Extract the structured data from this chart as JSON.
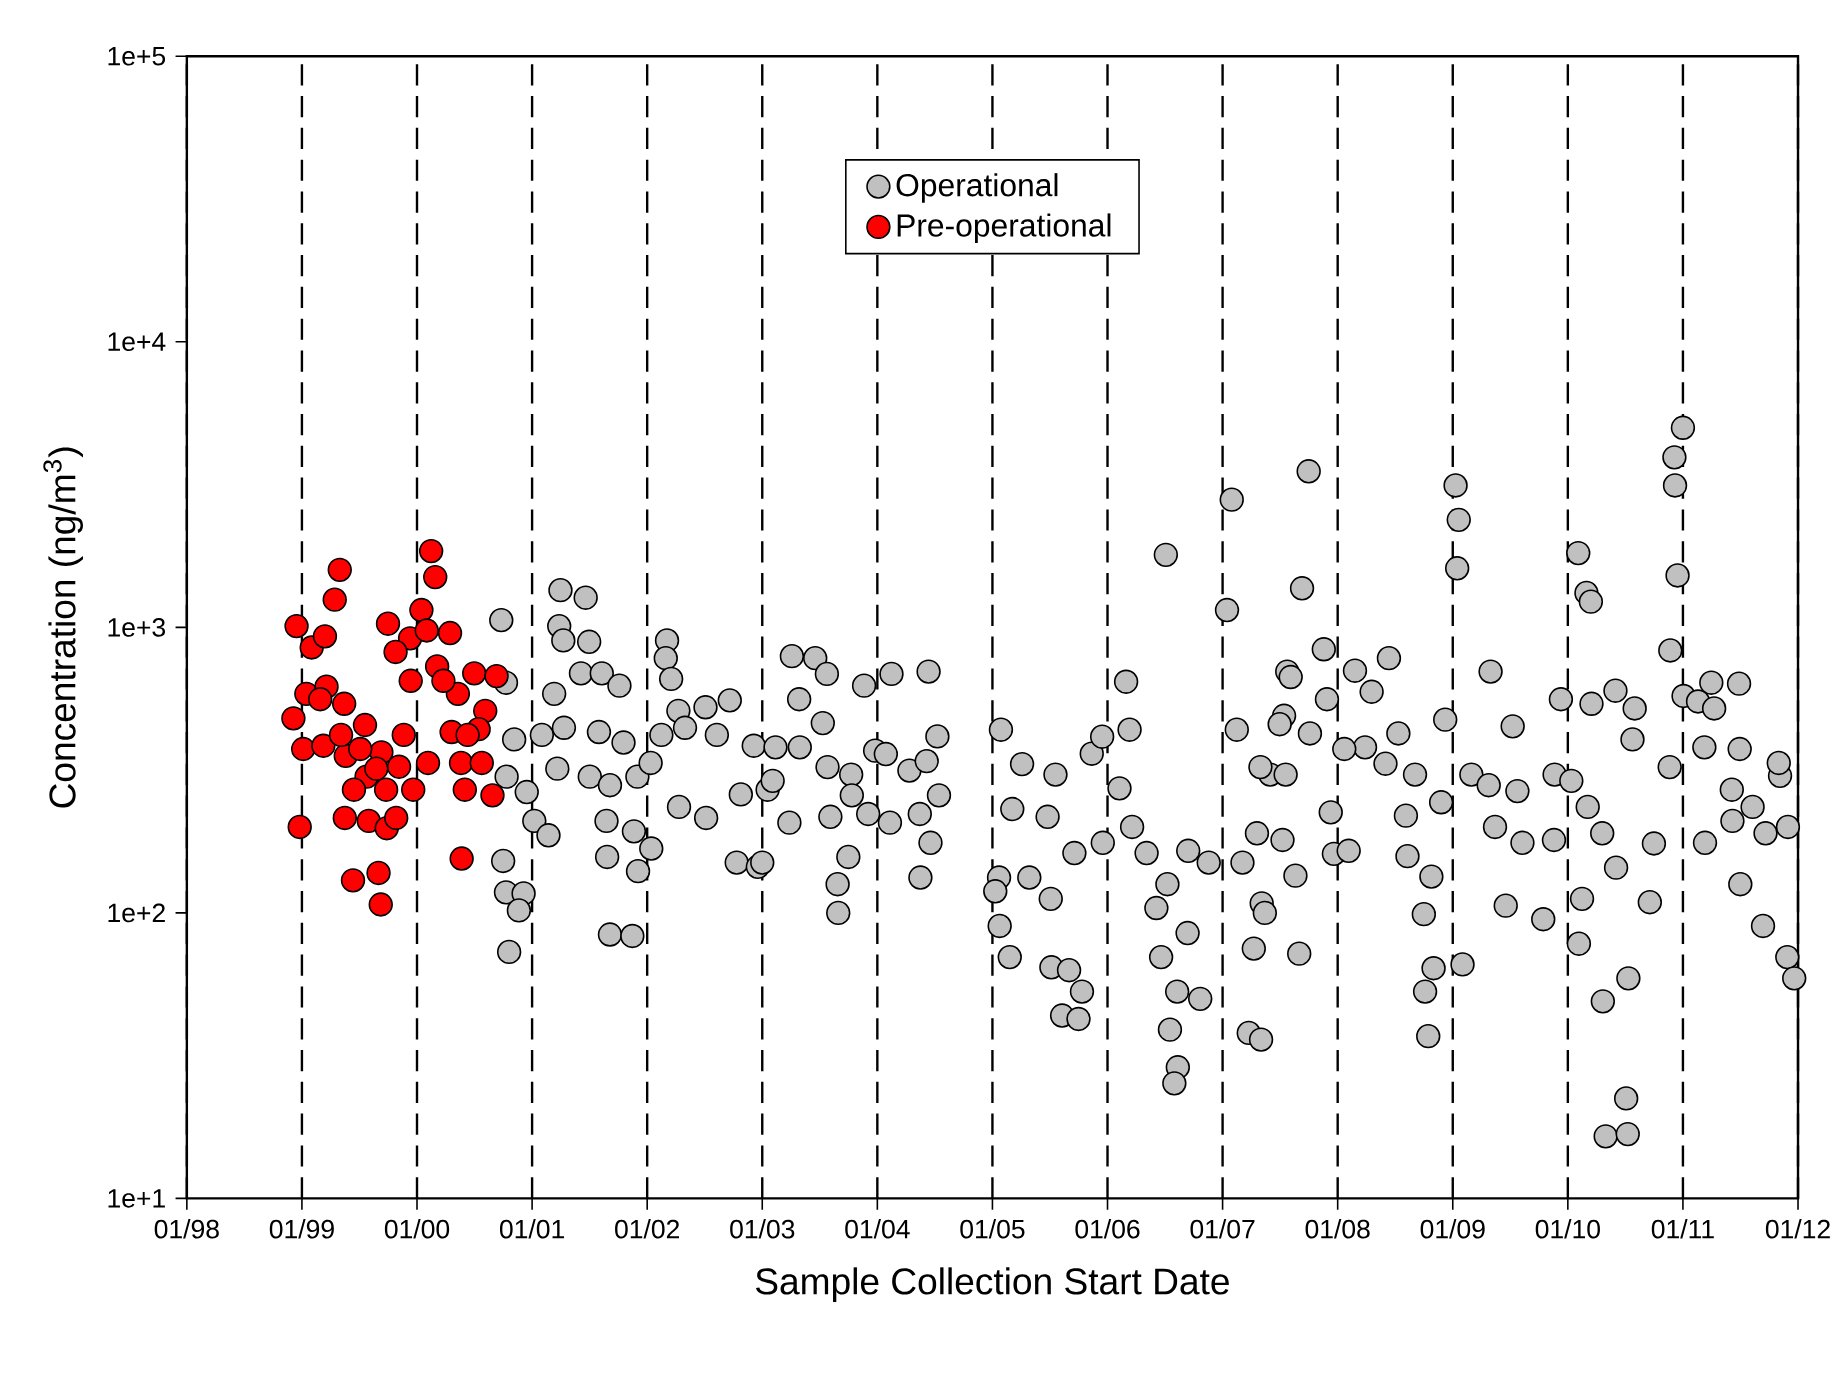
{
  "chart_data": {
    "type": "scatter",
    "xlabel": "Sample Collection Start Date",
    "ylabel": "Concentration (ng/m$^{3}$)",
    "log": "y",
    "grid": "x",
    "legend": "top",
    "marker": "circle",
    "xlim": [
      "1998-01-01",
      "2012-01-01"
    ],
    "xticks": [
      {
        "value": "1998-01-01",
        "label": "01/98"
      },
      {
        "value": "1999-01-01",
        "label": "01/99"
      },
      {
        "value": "2000-01-01",
        "label": "01/00"
      },
      {
        "value": "2001-01-01",
        "label": "01/01"
      },
      {
        "value": "2002-01-01",
        "label": "01/02"
      },
      {
        "value": "2003-01-01",
        "label": "01/03"
      },
      {
        "value": "2004-01-01",
        "label": "01/04"
      },
      {
        "value": "2005-01-01",
        "label": "01/05"
      },
      {
        "value": "2006-01-01",
        "label": "01/06"
      },
      {
        "value": "2007-01-01",
        "label": "01/07"
      },
      {
        "value": "2008-01-01",
        "label": "01/08"
      },
      {
        "value": "2009-01-01",
        "label": "01/09"
      },
      {
        "value": "2010-01-01",
        "label": "01/10"
      },
      {
        "value": "2011-01-01",
        "label": "01/11"
      },
      {
        "value": "2012-01-01",
        "label": "01/12"
      }
    ],
    "ylim": [
      10,
      100000
    ],
    "yticks": [
      {
        "value": 10,
        "label": "1e+1"
      },
      {
        "value": 100,
        "label": "1e+2"
      },
      {
        "value": 1000,
        "label": "1e+3"
      },
      {
        "value": 10000,
        "label": "1e+4"
      },
      {
        "value": 100000,
        "label": "1e+5"
      }
    ],
    "series": [
      {
        "name": "Operational",
        "color": "#c0c0c0",
        "x": [
          "2000-09-25",
          "2001-04-01",
          "2001-06-20",
          "2001-03-28",
          "2001-04-10",
          "2001-07-01",
          "2002-03-05",
          "2002-03-01",
          "2000-10-10",
          "2001-03-12",
          "2001-06-05",
          "2001-08-10",
          "2001-10-05",
          "2002-03-18",
          "2002-04-10",
          "2002-07-05",
          "2002-09-20",
          "2000-11-05",
          "2001-02-01",
          "2001-04-12",
          "2001-08-01",
          "2001-10-18",
          "2002-02-15",
          "2002-05-01",
          "2002-08-10",
          "2002-12-05",
          "2000-10-12",
          "2000-12-15",
          "2001-03-22",
          "2001-07-03",
          "2001-09-05",
          "2001-12-01",
          "2002-01-12",
          "2002-04-12",
          "2002-07-07",
          "2002-10-25",
          "2003-01-18",
          "2001-01-08",
          "2001-02-22",
          "2001-08-25",
          "2001-11-20",
          "2002-01-14",
          "2001-08-27",
          "2001-12-03",
          "2002-10-12",
          "2002-12-18",
          "2000-10-01",
          "2000-10-10",
          "2000-12-05",
          "2000-11-20",
          "2000-10-20",
          "2001-09-05",
          "2001-11-15",
          "2003-04-05",
          "2003-06-18",
          "2003-07-25",
          "2003-11-20",
          "2004-02-15",
          "2004-06-12",
          "2003-04-28",
          "2003-07-12",
          "2003-02-12",
          "2003-04-30",
          "2003-07-27",
          "2003-10-10",
          "2003-12-25",
          "2004-01-28",
          "2004-04-12",
          "2004-06-06",
          "2004-07-10",
          "2004-07-15",
          "2003-02-03",
          "2003-03-28",
          "2003-08-05",
          "2003-10-12",
          "2003-12-03",
          "2004-02-10",
          "2004-05-15",
          "2004-06-18",
          "2003-10-01",
          "2003-08-28",
          "2003-08-30",
          "2004-05-17",
          "2003-01-01",
          "2005-01-28",
          "2005-04-05",
          "2005-07-20",
          "2005-03-05",
          "2005-06-25",
          "2005-01-22",
          "2005-01-10",
          "2005-04-28",
          "2005-09-18",
          "2005-07-05",
          "2005-01-24",
          "2005-02-25",
          "2005-07-07",
          "2005-09-01",
          "2005-10-12",
          "2005-08-10",
          "2005-10-01",
          "2005-11-12",
          "2005-12-15",
          "2006-03-01",
          "2006-03-12",
          "2006-02-08",
          "2006-03-20",
          "2005-12-17",
          "2006-05-05",
          "2006-07-10",
          "2006-06-05",
          "2006-09-12",
          "2006-06-20",
          "2006-08-10",
          "2006-10-22",
          "2006-07-18",
          "2006-08-12",
          "2006-08-01",
          "2007-03-25",
          "2007-04-10",
          "2006-07-05",
          "2007-01-30",
          "2007-01-15",
          "2007-02-15",
          "2006-09-14",
          "2006-11-18",
          "2007-03-05",
          "2007-05-05",
          "2007-04-20",
          "2007-06-01",
          "2007-07-15",
          "2007-07-25",
          "2007-10-01",
          "2007-09-10",
          "2007-11-18",
          "2007-08-05",
          "2007-07-01",
          "2007-10-05",
          "2007-11-28",
          "2008-02-25",
          "2008-06-12",
          "2008-04-18",
          "2008-07-12",
          "2008-03-28",
          "2008-01-22",
          "2008-06-01",
          "2008-09-03",
          "2008-08-05",
          "2007-12-10",
          "2007-07-20",
          "2007-05-01",
          "2007-07-10",
          "2007-08-20",
          "2007-05-15",
          "2007-09-01",
          "2007-05-03",
          "2007-12-20",
          "2008-02-05",
          "2008-08-10",
          "2008-10-25",
          "2008-10-01",
          "2008-11-01",
          "2008-10-05",
          "2008-10-15",
          "2009-02-01",
          "2009-01-10",
          "2009-01-20",
          "2009-01-15",
          "2008-12-08",
          "2008-11-25",
          "2009-03-01",
          "2009-04-25",
          "2009-05-01",
          "2009-07-10",
          "2009-07-25",
          "2009-05-15",
          "2009-08-10",
          "2009-06-18",
          "2009-10-15",
          "2009-11-18",
          "2009-11-20",
          "2010-02-03",
          "2010-03-01",
          "2010-03-15",
          "2009-12-10",
          "2010-03-17",
          "2010-06-01",
          "2010-08-01",
          "2010-07-25",
          "2010-01-12",
          "2010-03-05",
          "2010-04-20",
          "2010-06-03",
          "2010-02-15",
          "2010-02-05",
          "2010-04-22",
          "2010-07-12",
          "2010-07-05",
          "2010-05-01",
          "2010-07-10",
          "2010-09-18",
          "2010-10-01",
          "2010-11-20",
          "2010-11-22",
          "2010-12-15",
          "2010-12-05",
          "2011-01-01",
          "2010-12-07",
          "2011-01-03",
          "2011-02-18",
          "2011-04-01",
          "2011-06-28",
          "2011-04-10",
          "2011-03-10",
          "2011-03-12",
          "2011-06-05",
          "2011-06-30",
          "2011-08-10",
          "2011-09-20",
          "2011-11-05",
          "2011-11-01",
          "2011-09-12",
          "2011-11-28",
          "2011-12-20",
          "2011-06-07",
          "2011-07-02",
          "2011-11-30"
        ],
        "values": [
          1060,
          1350,
          1270,
          1010,
          900,
          890,
          900,
          780,
          640,
          585,
          690,
          690,
          625,
          660,
          510,
          525,
          555,
          405,
          420,
          445,
          430,
          395,
          420,
          445,
          420,
          385,
          300,
          265,
          320,
          300,
          280,
          300,
          335,
          235,
          215,
          260,
          270,
          210,
          187,
          210,
          193,
          168,
          157,
          140,
          150,
          145,
          152,
          118,
          117,
          102,
          73,
          84,
          83,
          793,
          780,
          687,
          625,
          687,
          700,
          560,
          462,
          380,
          380,
          324,
          305,
          370,
          360,
          315,
          340,
          415,
          258,
          290,
          207,
          217,
          258,
          222,
          207,
          222,
          176,
          157,
          126,
          100,
          133,
          150,
          438,
          332,
          305,
          231,
          217,
          133,
          119,
          133,
          162,
          112,
          90,
          70,
          64.5,
          63,
          53,
          43.7,
          42.5,
          361,
          414,
          645,
          438,
          273,
          200,
          176,
          162,
          126,
          104,
          85,
          70,
          53,
          50,
          39,
          28.8,
          25.3,
          38,
          75,
          1795,
          2800,
          1150,
          438,
          165,
          150,
          150,
          108,
          190,
          305,
          490,
          700,
          3520,
          1370,
          838,
          670,
          458,
          425,
          560,
          705,
          780,
          595,
          425,
          380,
          375,
          333,
          305,
          219,
          225,
          305,
          324,
          180,
          135,
          100,
          72,
          36,
          161,
          165,
          158,
          134,
          99,
          64,
          53,
          37,
          66,
          3140,
          2380,
          1610,
          475,
          244,
          305,
          280,
          700,
          450,
          267,
          200,
          176,
          106,
          95,
          180,
          305,
          1820,
          1320,
          1230,
          560,
          540,
          600,
          520,
          405,
          290,
          235,
          190,
          144,
          112,
          78,
          49,
          59,
          22.4,
          16.5,
          16.8,
          109,
          175,
          324,
          830,
          1520,
          3940,
          5000,
          3140,
          575,
          550,
          640,
          635,
          520,
          380,
          176,
          270,
          375,
          235,
          190,
          302,
          335,
          90,
          70,
          59,
          210,
          126,
          200
        ]
      },
      {
        "name": "Pre-operational",
        "color": "#ff0000",
        "x": [
          "1999-05-01",
          "1999-04-15",
          "1998-12-15",
          "1999-02-01",
          "1999-03-15",
          "2000-02-15",
          "2000-02-28",
          "1999-10-01",
          "2000-01-15",
          "1999-12-10",
          "2000-02-01",
          "2000-04-15",
          "1999-10-25",
          "2000-03-05",
          "2000-05-10",
          "2000-07-01",
          "2000-09-10",
          "1998-12-05",
          "1999-01-15",
          "1999-03-20",
          "1999-05-15",
          "1999-01-05",
          "1999-03-10",
          "1999-07-20",
          "1999-11-20",
          "1999-05-20",
          "1999-09-10",
          "1999-07-25",
          "1999-11-05",
          "2000-02-05",
          "1999-06-15",
          "1999-09-25",
          "1999-12-20",
          "2000-04-20",
          "2000-08-05",
          "2000-07-15",
          "2000-05-20",
          "2000-07-25",
          "2000-06-01",
          "2000-08-28",
          "1998-12-25",
          "1999-05-17",
          "1999-08-01",
          "1999-09-27",
          "1999-10-27",
          "2000-05-22",
          "1999-06-12",
          "1999-09-01",
          "1999-09-08",
          "1999-02-28",
          "1999-07-05",
          "1999-05-05",
          "1999-08-25",
          "1999-12-12",
          "2000-03-25",
          "2000-06-10"
        ],
        "values": [
          1590,
          1250,
          1010,
          850,
          930,
          1850,
          1500,
          1030,
          1150,
          915,
          975,
          955,
          820,
          730,
          585,
          690,
          675,
          480,
          585,
          620,
          540,
          375,
          385,
          455,
          420,
          355,
          365,
          300,
          325,
          335,
          270,
          270,
          270,
          430,
          510,
          440,
          335,
          335,
          270,
          258,
          200,
          215,
          210,
          198,
          215,
          155,
          130,
          138,
          107,
          560,
          375,
          420,
          320,
          650,
          650,
          420
        ]
      }
    ]
  }
}
